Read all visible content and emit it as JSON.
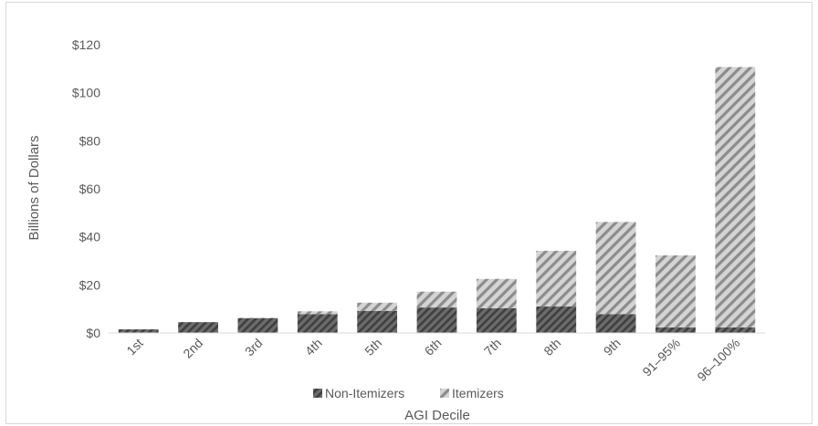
{
  "chart_data": {
    "type": "bar",
    "stacked": true,
    "title": "",
    "xlabel": "AGI Decile",
    "ylabel": "Billions of Dollars",
    "ylim": [
      0,
      120
    ],
    "yticks": [
      0,
      20,
      40,
      60,
      80,
      100,
      120
    ],
    "ytick_labels": [
      "$0",
      "$20",
      "$40",
      "$60",
      "$80",
      "$100",
      "$120"
    ],
    "categories": [
      "1st",
      "2nd",
      "3rd",
      "4th",
      "5th",
      "6th",
      "7th",
      "8th",
      "9th",
      "91–95%",
      "96–100%"
    ],
    "series": [
      {
        "name": "Non-Itemizers",
        "color": "#595959",
        "pattern": "dark-diagonal-stripes",
        "values": [
          1.5,
          4.5,
          6.2,
          7.8,
          9.2,
          10.6,
          10.3,
          11.0,
          7.8,
          2.3,
          2.3
        ]
      },
      {
        "name": "Itemizers",
        "color": "#a6a6a6",
        "pattern": "light-diagonal-stripes",
        "values": [
          0.0,
          0.0,
          0.1,
          1.2,
          3.4,
          6.6,
          12.2,
          23.2,
          38.4,
          30.0,
          108.4
        ]
      }
    ],
    "legend": {
      "position": "bottom",
      "entries": [
        "Non-Itemizers",
        "Itemizers"
      ]
    },
    "grid": false
  }
}
